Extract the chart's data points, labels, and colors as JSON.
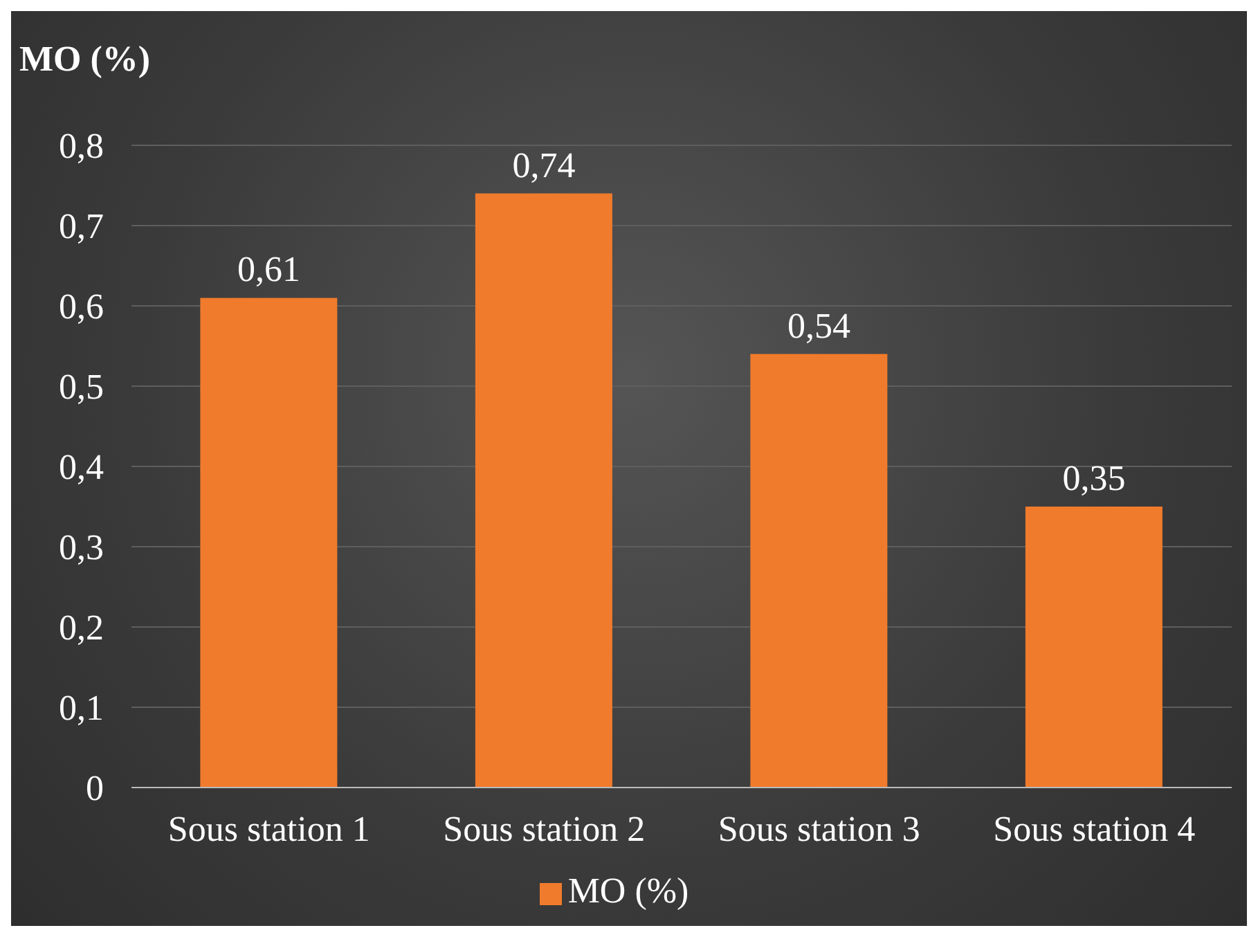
{
  "chart_data": {
    "type": "bar",
    "title": "MO (%)",
    "categories": [
      "Sous station 1",
      "Sous station 2",
      "Sous station 3",
      "Sous station 4"
    ],
    "series": [
      {
        "name": "MO (%)",
        "color": "#f07b2c",
        "values": [
          0.61,
          0.74,
          0.54,
          0.35
        ],
        "value_labels": [
          "0,61",
          "0,74",
          "0,54",
          "0,35"
        ]
      }
    ],
    "ylim": [
      0,
      0.8
    ],
    "yticks": [
      {
        "value": 0,
        "label": "0"
      },
      {
        "value": 0.1,
        "label": "0,1"
      },
      {
        "value": 0.2,
        "label": "0,2"
      },
      {
        "value": 0.3,
        "label": "0,3"
      },
      {
        "value": 0.4,
        "label": "0,4"
      },
      {
        "value": 0.5,
        "label": "0,5"
      },
      {
        "value": 0.6,
        "label": "0,6"
      },
      {
        "value": 0.7,
        "label": "0,7"
      },
      {
        "value": 0.8,
        "label": "0,8"
      }
    ],
    "grid": "y",
    "legend": "bottom"
  }
}
